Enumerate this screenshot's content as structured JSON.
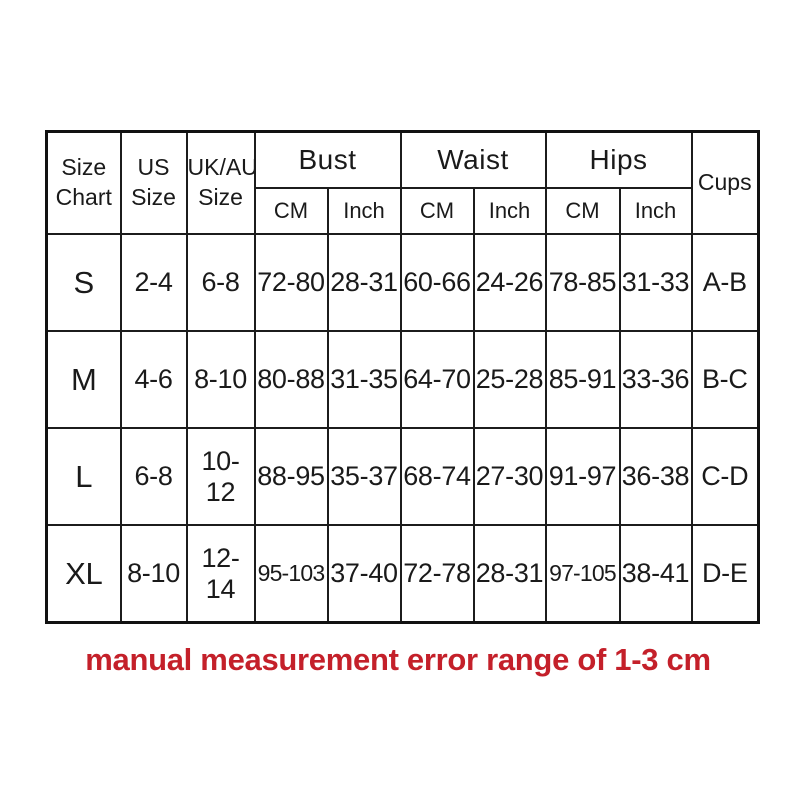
{
  "chart_data": {
    "type": "table",
    "title": "Size Chart",
    "headers": {
      "size_chart": "Size\nChart",
      "us_size": "US\nSize",
      "ukau_size": "UK/AU\nSize",
      "bust": "Bust",
      "waist": "Waist",
      "hips": "Hips",
      "cups": "Cups"
    },
    "unit_subheaders": [
      "CM",
      "Inch",
      "CM",
      "Inch",
      "CM",
      "Inch"
    ],
    "rows": [
      {
        "size": "S",
        "us_size": "2-4",
        "ukau_size": "6-8",
        "bust_cm": "72-80",
        "bust_inch": "28-31",
        "waist_cm": "60-66",
        "waist_inch": "24-26",
        "hips_cm": "78-85",
        "hips_inch": "31-33",
        "cups": "A-B"
      },
      {
        "size": "M",
        "us_size": "4-6",
        "ukau_size": "8-10",
        "bust_cm": "80-88",
        "bust_inch": "31-35",
        "waist_cm": "64-70",
        "waist_inch": "25-28",
        "hips_cm": "85-91",
        "hips_inch": "33-36",
        "cups": "B-C"
      },
      {
        "size": "L",
        "us_size": "6-8",
        "ukau_size": "10-12",
        "bust_cm": "88-95",
        "bust_inch": "35-37",
        "waist_cm": "68-74",
        "waist_inch": "27-30",
        "hips_cm": "91-97",
        "hips_inch": "36-38",
        "cups": "C-D"
      },
      {
        "size": "XL",
        "us_size": "8-10",
        "ukau_size": "12-14",
        "bust_cm": "95-103",
        "bust_inch": "37-40",
        "waist_cm": "72-78",
        "waist_inch": "28-31",
        "hips_cm": "97-105",
        "hips_inch": "38-41",
        "cups": "D-E"
      }
    ]
  },
  "footnote": {
    "text": "manual measurement error range of 1-3 cm",
    "color": "#c4202a"
  },
  "colors": {
    "background": "#ffffff",
    "border": "#1c1c1c",
    "text": "#1a1a1a"
  }
}
